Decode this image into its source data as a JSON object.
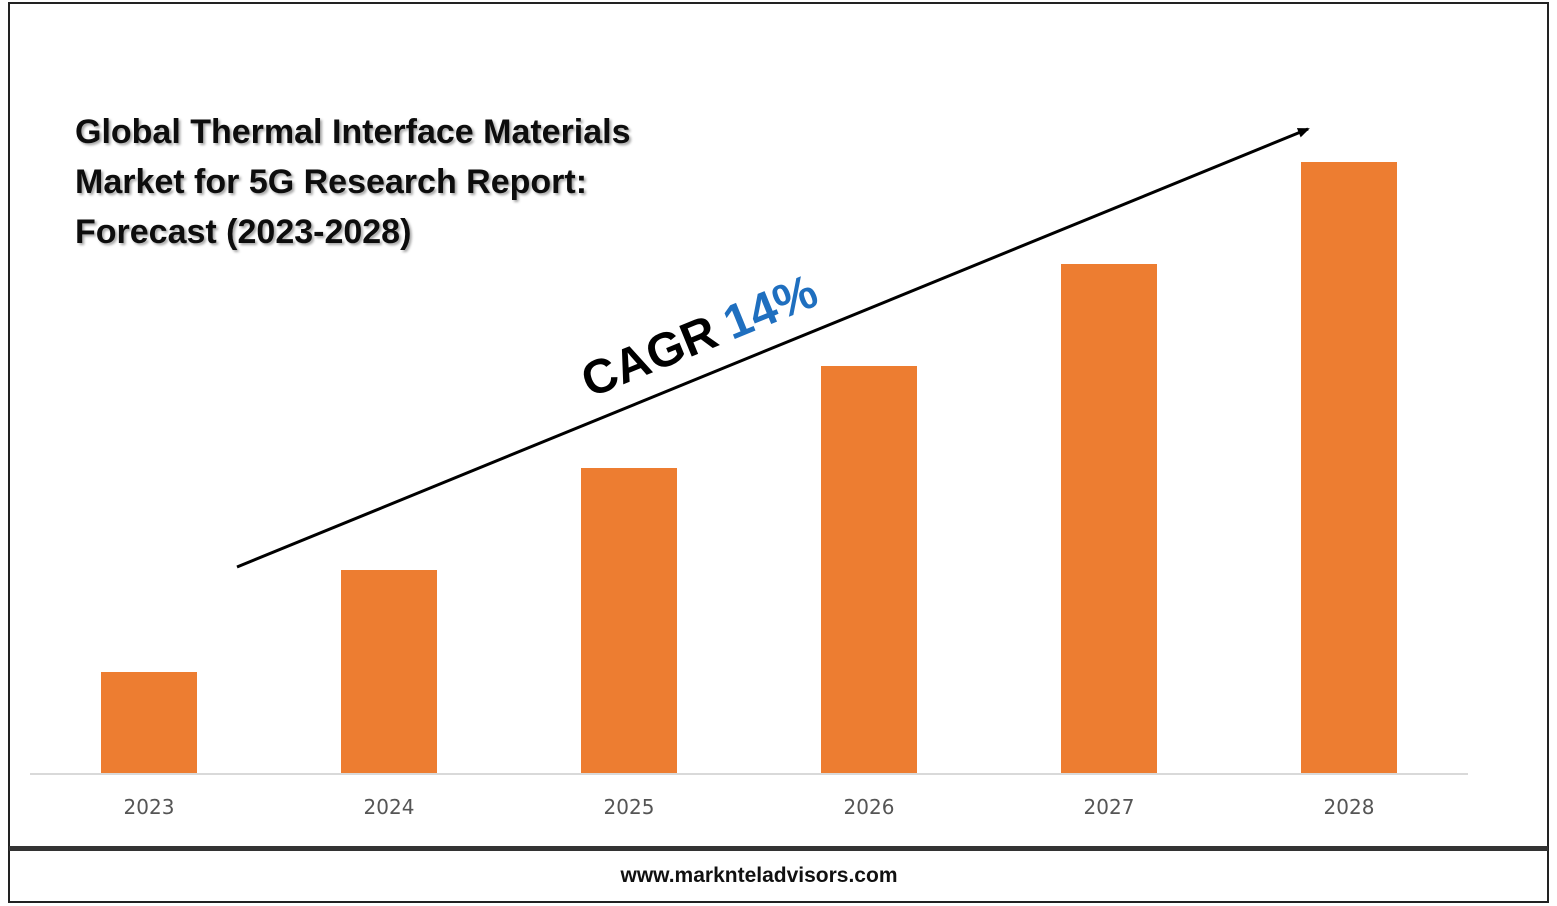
{
  "chart_data": {
    "type": "bar",
    "title_lines": [
      "Global Thermal Interface Materials",
      "Market for 5G Research Report:",
      "Forecast (2023-2028)"
    ],
    "categories": [
      "2023",
      "2024",
      "2025",
      "2026",
      "2027",
      "2028"
    ],
    "values": [
      1,
      2,
      3,
      4,
      5,
      6
    ],
    "ylim": [
      0,
      6.3
    ],
    "xlabel": "",
    "ylabel": "",
    "grid": false,
    "legend": "none",
    "bar_color": "#ED7D31",
    "annotation": {
      "prefix": "CAGR",
      "value": "14%",
      "prefix_color": "#000000",
      "value_color": "#1F6FBF"
    }
  },
  "footer": {
    "website": "www.marknteladvisors.com"
  },
  "colors": {
    "frame_border": "#222222",
    "axis_line": "#D9D9D9",
    "arrow": "#000000"
  }
}
